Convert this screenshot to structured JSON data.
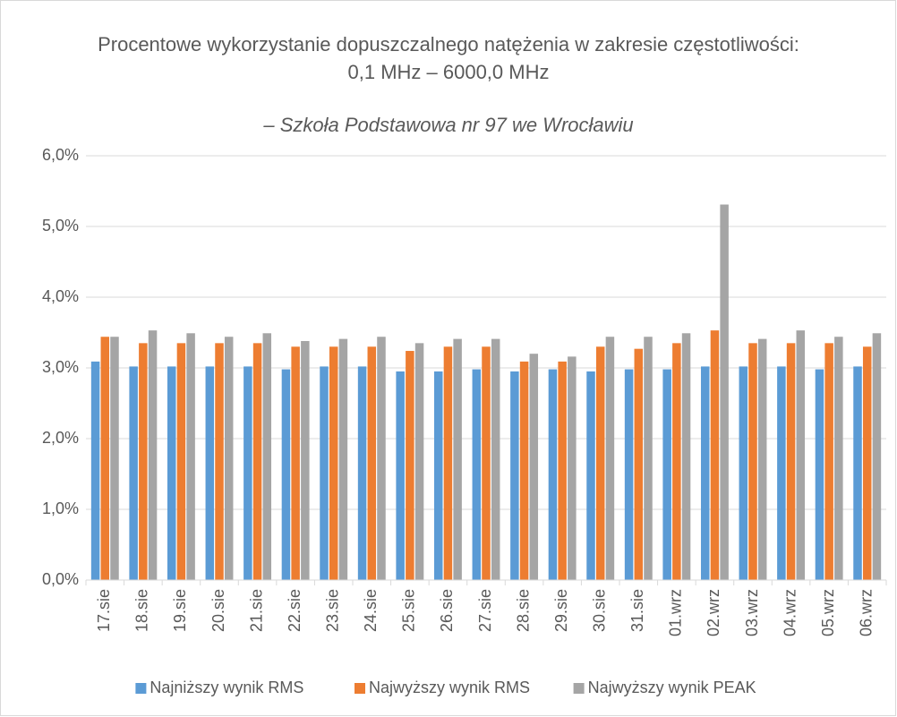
{
  "chart_data": {
    "type": "bar",
    "title": "Procentowe wykorzystanie dopuszczalnego natężenia w zakresie częstotliwości: 0,1 MHz – 6000,0 MHz",
    "subtitle": "– Szkoła Podstawowa nr 97 we Wrocławiu",
    "categories": [
      "17.sie",
      "18.sie",
      "19.sie",
      "20.sie",
      "21.sie",
      "22.sie",
      "23.sie",
      "24.sie",
      "25.sie",
      "26.sie",
      "27.sie",
      "28.sie",
      "29.sie",
      "30.sie",
      "31.sie",
      "01.wrz",
      "02.wrz",
      "03.wrz",
      "04.wrz",
      "05.wrz",
      "06.wrz"
    ],
    "series": [
      {
        "name": "Najniższy wynik RMS",
        "color": "#5b9bd5",
        "values": [
          3.09,
          3.02,
          3.02,
          3.02,
          3.02,
          2.98,
          3.02,
          3.02,
          2.95,
          2.95,
          2.98,
          2.95,
          2.98,
          2.95,
          2.98,
          2.98,
          3.02,
          3.02,
          3.02,
          2.98,
          3.02
        ]
      },
      {
        "name": "Najwyższy wynik RMS",
        "color": "#ed7d31",
        "values": [
          3.44,
          3.35,
          3.35,
          3.35,
          3.35,
          3.3,
          3.3,
          3.3,
          3.24,
          3.3,
          3.3,
          3.09,
          3.09,
          3.3,
          3.27,
          3.35,
          3.53,
          3.35,
          3.35,
          3.35,
          3.3
        ]
      },
      {
        "name": "Najwyższy wynik PEAK",
        "color": "#a5a5a5",
        "values": [
          3.44,
          3.53,
          3.49,
          3.44,
          3.49,
          3.38,
          3.41,
          3.44,
          3.35,
          3.41,
          3.41,
          3.2,
          3.16,
          3.44,
          3.44,
          3.49,
          5.31,
          3.41,
          3.53,
          3.44,
          3.49
        ]
      }
    ],
    "ylim": [
      0,
      6
    ],
    "yticks": [
      {
        "value": 0,
        "label": "0,0%"
      },
      {
        "value": 1,
        "label": "1,0%"
      },
      {
        "value": 2,
        "label": "2,0%"
      },
      {
        "value": 3,
        "label": "3,0%"
      },
      {
        "value": 4,
        "label": "4,0%"
      },
      {
        "value": 5,
        "label": "5,0%"
      },
      {
        "value": 6,
        "label": "6,0%"
      }
    ],
    "grid": true,
    "legend": "bottom"
  }
}
